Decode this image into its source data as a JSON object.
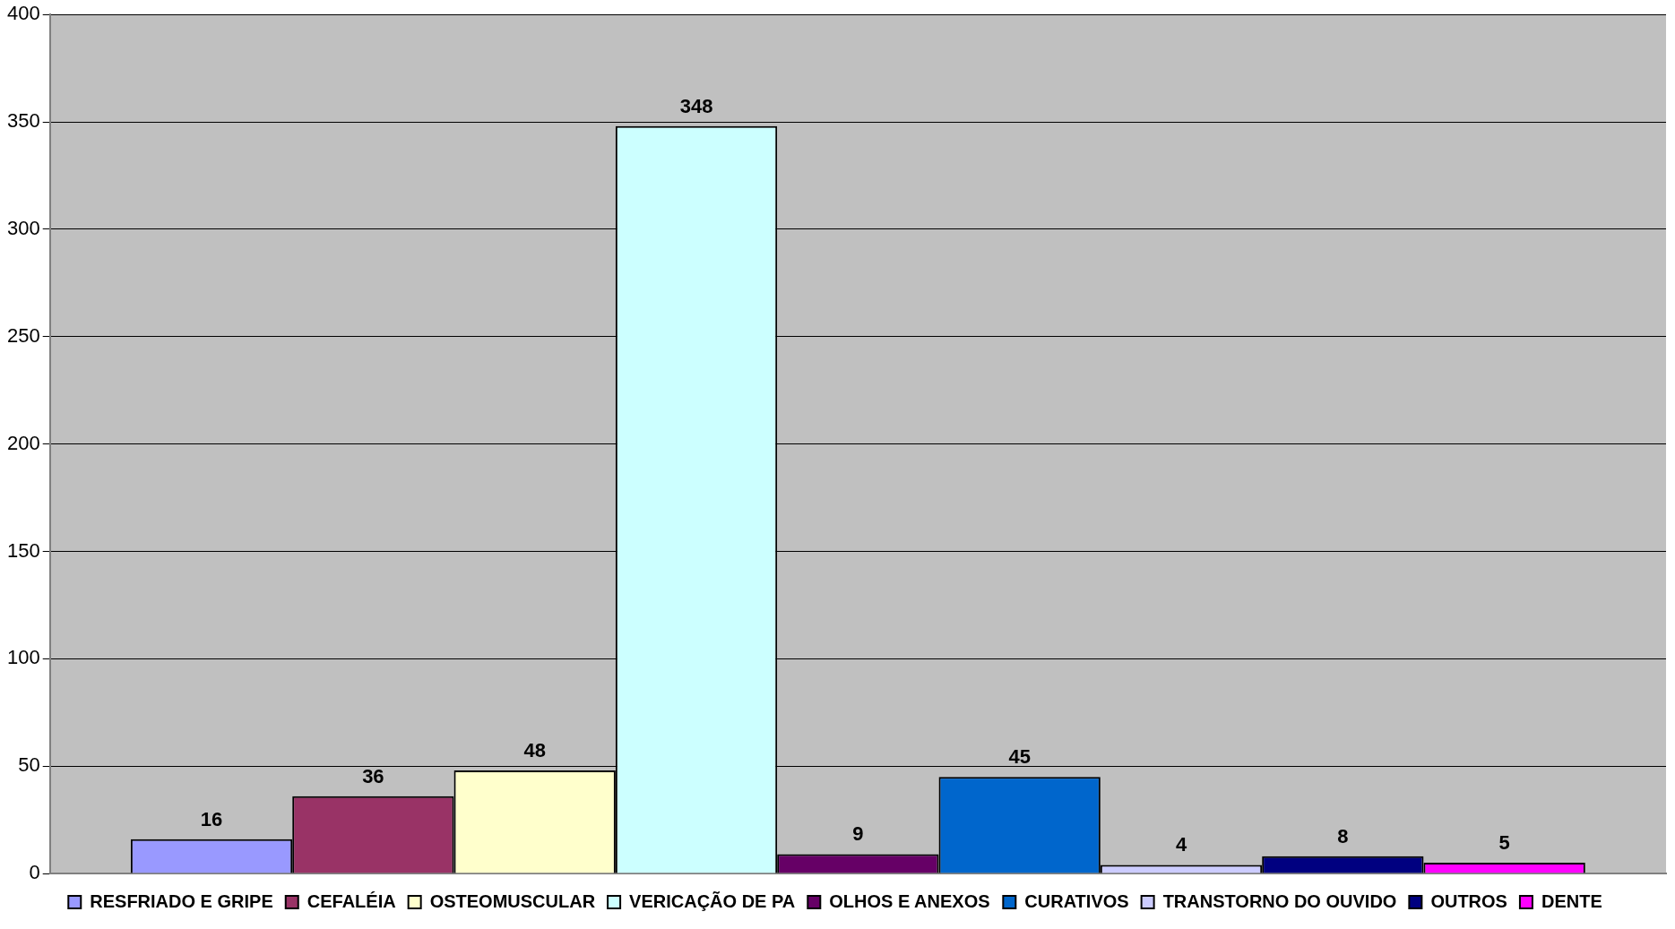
{
  "chart_data": {
    "type": "bar",
    "categories": [
      null
    ],
    "series": [
      {
        "name": "RESFRIADO E GRIPE",
        "color": "#9999ff",
        "values": [
          16
        ]
      },
      {
        "name": "CEFALÉIA",
        "color": "#993366",
        "values": [
          36
        ]
      },
      {
        "name": "OSTEOMUSCULAR",
        "color": "#ffffcc",
        "values": [
          48
        ]
      },
      {
        "name": "VERICAÇÃO DE PA",
        "color": "#ccffff",
        "values": [
          348
        ]
      },
      {
        "name": "OLHOS E ANEXOS",
        "color": "#660066",
        "values": [
          9
        ]
      },
      {
        "name": "CURATIVOS",
        "color": "#0066cc",
        "values": [
          45
        ]
      },
      {
        "name": "TRANSTORNO DO OUVIDO",
        "color": "#ccccff",
        "values": [
          4
        ]
      },
      {
        "name": "OUTROS",
        "color": "#000080",
        "values": [
          8
        ]
      },
      {
        "name": "DENTE",
        "color": "#ff00ff",
        "values": [
          5
        ]
      }
    ],
    "ylim": [
      0,
      400
    ],
    "yticks": [
      0,
      50,
      100,
      150,
      200,
      250,
      300,
      350,
      400
    ],
    "grid": "y",
    "legend": "bottom",
    "data_labels": true
  }
}
